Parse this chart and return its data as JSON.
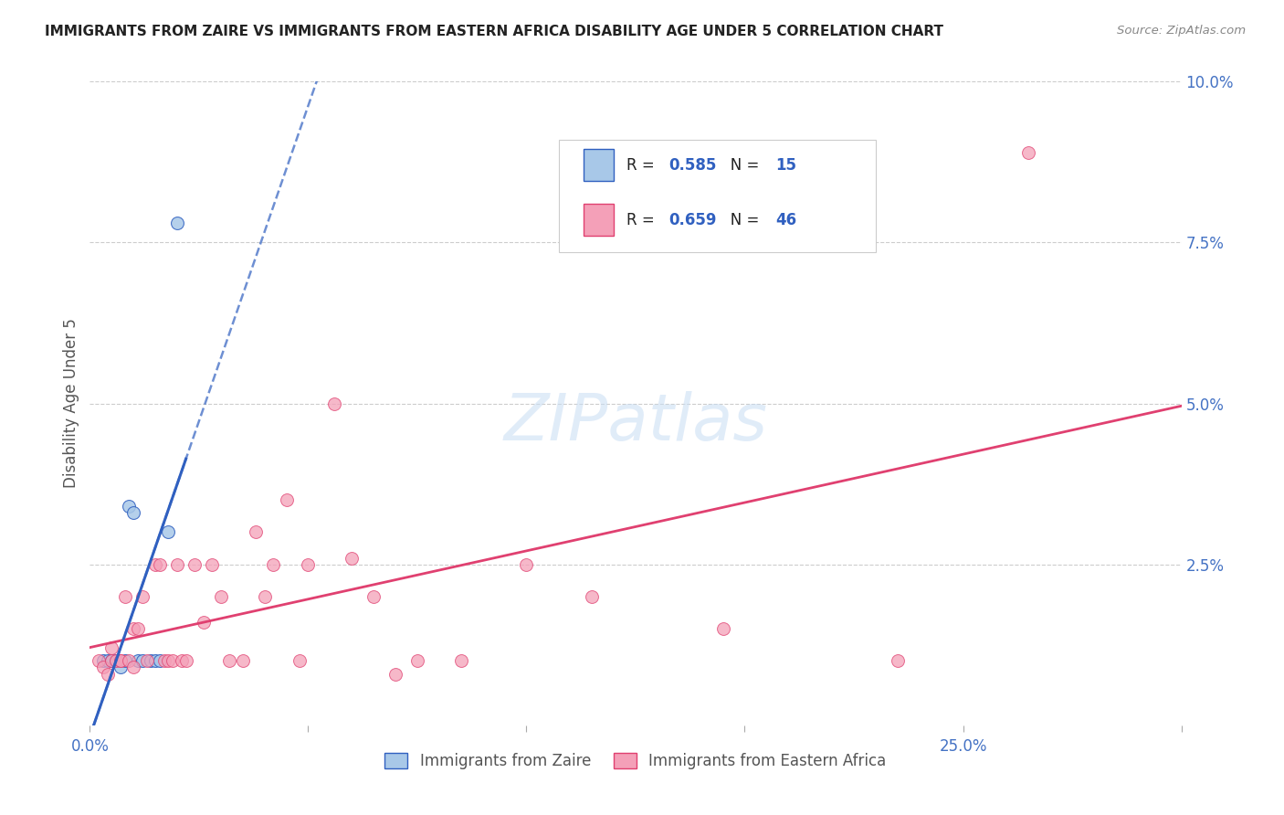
{
  "title": "IMMIGRANTS FROM ZAIRE VS IMMIGRANTS FROM EASTERN AFRICA DISABILITY AGE UNDER 5 CORRELATION CHART",
  "source": "Source: ZipAtlas.com",
  "ylabel": "Disability Age Under 5",
  "legend_label1": "Immigrants from Zaire",
  "legend_label2": "Immigrants from Eastern Africa",
  "R1": 0.585,
  "N1": 15,
  "R2": 0.659,
  "N2": 46,
  "color1": "#a8c8e8",
  "color2": "#f4a0b8",
  "line_color1": "#3060c0",
  "line_color2": "#e04070",
  "xlim": [
    0,
    0.25
  ],
  "ylim": [
    0,
    0.1
  ],
  "yticks": [
    0.0,
    0.025,
    0.05,
    0.075,
    0.1
  ],
  "ytick_labels": [
    "",
    "2.5%",
    "5.0%",
    "7.5%",
    "10.0%"
  ],
  "xtick_major": [
    0.0,
    0.25
  ],
  "xtick_minor": [
    0.05,
    0.1,
    0.15,
    0.2
  ],
  "xtick_major_labels": [
    "0.0%",
    "25.0%"
  ],
  "zaire_x": [
    0.003,
    0.004,
    0.005,
    0.006,
    0.007,
    0.008,
    0.009,
    0.01,
    0.011,
    0.012,
    0.014,
    0.015,
    0.016,
    0.018,
    0.02
  ],
  "zaire_y": [
    0.01,
    0.01,
    0.01,
    0.01,
    0.009,
    0.01,
    0.034,
    0.033,
    0.01,
    0.01,
    0.01,
    0.01,
    0.01,
    0.03,
    0.078
  ],
  "eastern_x": [
    0.002,
    0.003,
    0.004,
    0.005,
    0.005,
    0.006,
    0.007,
    0.007,
    0.008,
    0.009,
    0.01,
    0.01,
    0.011,
    0.012,
    0.013,
    0.015,
    0.016,
    0.017,
    0.018,
    0.019,
    0.02,
    0.021,
    0.022,
    0.024,
    0.026,
    0.028,
    0.03,
    0.032,
    0.035,
    0.038,
    0.04,
    0.042,
    0.045,
    0.048,
    0.05,
    0.056,
    0.06,
    0.065,
    0.07,
    0.075,
    0.085,
    0.1,
    0.115,
    0.145,
    0.185,
    0.215
  ],
  "eastern_y": [
    0.01,
    0.009,
    0.008,
    0.01,
    0.012,
    0.01,
    0.01,
    0.01,
    0.02,
    0.01,
    0.015,
    0.009,
    0.015,
    0.02,
    0.01,
    0.025,
    0.025,
    0.01,
    0.01,
    0.01,
    0.025,
    0.01,
    0.01,
    0.025,
    0.016,
    0.025,
    0.02,
    0.01,
    0.01,
    0.03,
    0.02,
    0.025,
    0.035,
    0.01,
    0.025,
    0.05,
    0.026,
    0.02,
    0.008,
    0.01,
    0.01,
    0.025,
    0.02,
    0.015,
    0.01,
    0.089
  ],
  "watermark": "ZIPatlas",
  "background_color": "#ffffff",
  "grid_color": "#cccccc"
}
